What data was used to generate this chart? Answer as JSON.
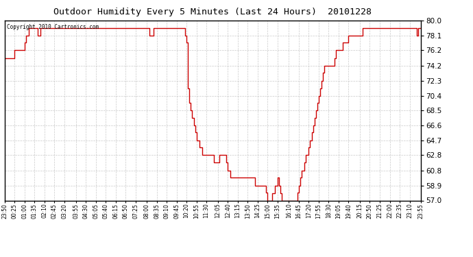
{
  "title": "Outdoor Humidity Every 5 Minutes (Last 24 Hours)  20101228",
  "copyright_text": "Copyright 2010 Cartronics.com",
  "line_color": "#cc0000",
  "bg_color": "#ffffff",
  "grid_color": "#bbbbbb",
  "y_min": 57.0,
  "y_max": 80.0,
  "yticks": [
    57.0,
    58.9,
    60.8,
    62.8,
    64.7,
    66.6,
    68.5,
    70.4,
    72.3,
    74.2,
    76.2,
    78.1,
    80.0
  ],
  "x_labels": [
    "23:50",
    "00:25",
    "01:00",
    "01:35",
    "02:10",
    "02:45",
    "03:20",
    "03:55",
    "04:30",
    "05:05",
    "05:40",
    "06:15",
    "06:50",
    "07:25",
    "08:00",
    "08:35",
    "09:10",
    "09:45",
    "10:20",
    "10:55",
    "11:30",
    "12:05",
    "12:40",
    "13:15",
    "13:50",
    "14:25",
    "15:00",
    "15:35",
    "16:10",
    "16:45",
    "17:20",
    "17:55",
    "18:30",
    "19:05",
    "19:40",
    "20:15",
    "20:50",
    "21:25",
    "22:00",
    "22:35",
    "23:10",
    "23:55"
  ],
  "humidity_data": [
    75.2,
    75.2,
    75.2,
    75.2,
    75.2,
    75.2,
    75.2,
    76.2,
    76.2,
    76.2,
    76.2,
    76.2,
    76.2,
    76.2,
    77.2,
    78.1,
    78.1,
    79.0,
    79.0,
    79.0,
    79.0,
    79.0,
    79.0,
    78.1,
    78.1,
    79.0,
    79.0,
    79.0,
    79.0,
    79.0,
    79.0,
    79.0,
    79.0,
    79.0,
    79.0,
    79.0,
    79.0,
    79.0,
    79.0,
    79.0,
    79.0,
    79.0,
    79.0,
    79.0,
    79.0,
    79.0,
    79.0,
    79.0,
    79.0,
    79.0,
    79.0,
    79.0,
    79.0,
    79.0,
    79.0,
    79.0,
    79.0,
    79.0,
    79.0,
    79.0,
    79.0,
    79.0,
    79.0,
    79.0,
    79.0,
    79.0,
    79.0,
    79.0,
    79.0,
    79.0,
    79.0,
    79.0,
    79.0,
    79.0,
    79.0,
    79.0,
    79.0,
    79.0,
    79.0,
    79.0,
    79.0,
    79.0,
    79.0,
    79.0,
    79.0,
    79.0,
    79.0,
    79.0,
    79.0,
    79.0,
    79.0,
    79.0,
    79.0,
    79.0,
    79.0,
    79.0,
    79.0,
    79.0,
    79.0,
    79.0,
    79.0,
    79.0,
    78.1,
    78.1,
    78.1,
    79.0,
    79.0,
    79.0,
    79.0,
    79.0,
    79.0,
    79.0,
    79.0,
    79.0,
    79.0,
    79.0,
    79.0,
    79.0,
    79.0,
    79.0,
    79.0,
    79.0,
    79.0,
    79.0,
    79.0,
    79.0,
    79.0,
    78.1,
    77.2,
    71.3,
    69.5,
    68.5,
    67.6,
    66.6,
    65.7,
    64.7,
    64.7,
    63.8,
    63.8,
    62.8,
    62.8,
    62.8,
    62.8,
    62.8,
    62.8,
    62.8,
    62.8,
    61.9,
    61.9,
    61.9,
    61.9,
    62.8,
    62.8,
    62.8,
    62.8,
    62.8,
    61.9,
    60.8,
    60.8,
    59.9,
    59.9,
    59.9,
    59.9,
    59.9,
    59.9,
    59.9,
    59.9,
    59.9,
    59.9,
    59.9,
    59.9,
    59.9,
    59.9,
    59.9,
    59.9,
    59.9,
    58.9,
    58.9,
    58.9,
    58.9,
    58.9,
    58.9,
    58.9,
    58.9,
    58.0,
    57.0,
    57.0,
    57.0,
    57.9,
    57.9,
    58.9,
    58.9,
    59.9,
    58.9,
    57.9,
    57.0,
    57.0,
    57.0,
    57.0,
    57.0,
    57.0,
    57.0,
    57.0,
    57.0,
    57.0,
    57.0,
    58.0,
    58.9,
    59.9,
    60.8,
    60.8,
    61.9,
    62.8,
    62.8,
    63.8,
    64.7,
    65.7,
    66.6,
    67.6,
    68.5,
    69.5,
    70.4,
    71.3,
    72.3,
    73.3,
    74.2,
    74.2,
    74.2,
    74.2,
    74.2,
    74.2,
    74.2,
    75.2,
    76.2,
    76.2,
    76.2,
    76.2,
    76.2,
    77.2,
    77.2,
    77.2,
    77.2,
    78.1,
    78.1,
    78.1,
    78.1,
    78.1,
    78.1,
    78.1,
    78.1,
    78.1,
    78.1,
    79.0,
    79.0,
    79.0,
    79.0,
    79.0,
    79.0,
    79.0,
    79.0,
    79.0,
    79.0,
    79.0,
    79.0,
    79.0,
    79.0,
    79.0,
    79.0,
    79.0,
    79.0,
    79.0,
    79.0,
    79.0,
    79.0,
    79.0,
    79.0,
    79.0,
    79.0,
    79.0,
    79.0,
    79.0,
    79.0,
    79.0,
    79.0,
    79.0,
    79.0,
    79.0,
    79.0,
    79.0,
    79.0,
    78.1,
    79.0,
    79.0,
    79.0
  ]
}
